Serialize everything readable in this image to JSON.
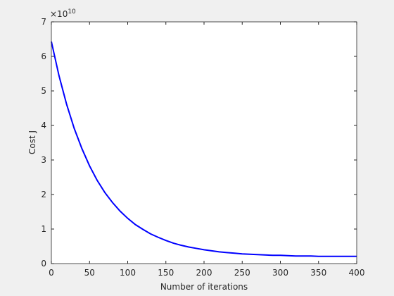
{
  "chart_data": {
    "type": "line",
    "xlabel": "Number of iterations",
    "ylabel": "Cost J",
    "y_multiplier": {
      "base": "×10",
      "exponent": "10"
    },
    "x": [
      0,
      10,
      20,
      30,
      40,
      50,
      60,
      70,
      80,
      90,
      100,
      110,
      120,
      130,
      140,
      150,
      160,
      170,
      180,
      190,
      200,
      210,
      220,
      230,
      240,
      250,
      260,
      270,
      280,
      290,
      300,
      310,
      320,
      330,
      340,
      350,
      360,
      370,
      380,
      390,
      400
    ],
    "series": [
      {
        "name": "Cost J",
        "color": "#0000ff",
        "values": [
          6.43,
          5.44,
          4.61,
          3.91,
          3.33,
          2.83,
          2.41,
          2.06,
          1.77,
          1.52,
          1.31,
          1.13,
          0.99,
          0.86,
          0.76,
          0.67,
          0.59,
          0.53,
          0.48,
          0.44,
          0.4,
          0.37,
          0.34,
          0.32,
          0.3,
          0.28,
          0.27,
          0.26,
          0.25,
          0.24,
          0.24,
          0.23,
          0.22,
          0.22,
          0.22,
          0.21,
          0.21,
          0.21,
          0.21,
          0.21,
          0.21
        ]
      }
    ],
    "xlim": [
      0,
      400
    ],
    "xticks": [
      0,
      50,
      100,
      150,
      200,
      250,
      300,
      350,
      400
    ],
    "ylim": [
      0,
      7
    ],
    "yticks": [
      0,
      1,
      2,
      3,
      4,
      5,
      6,
      7
    ],
    "grid": false
  }
}
